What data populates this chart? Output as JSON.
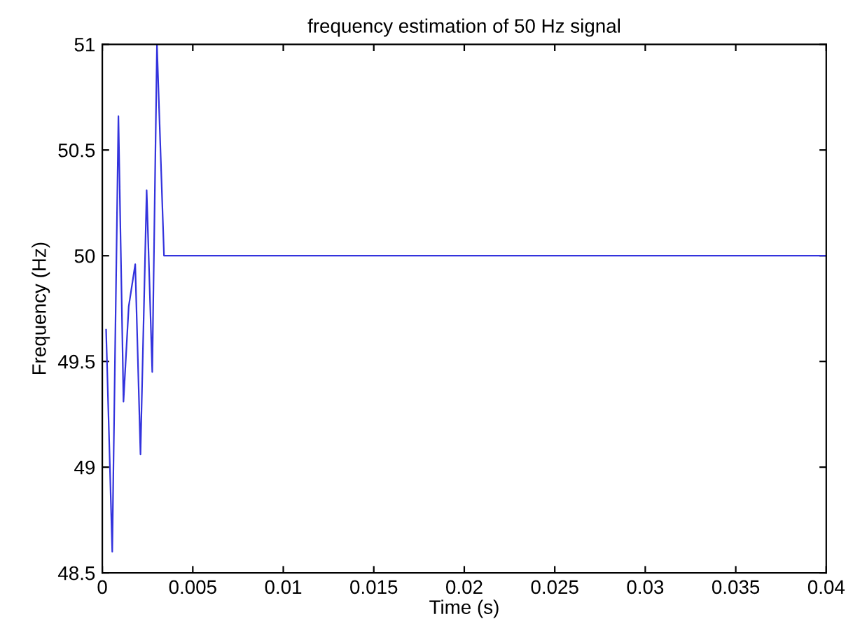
{
  "chart_data": {
    "type": "line",
    "title": "frequency estimation of 50 Hz signal",
    "xlabel": "Time (s)",
    "ylabel": "Frequency (Hz)",
    "series": [
      {
        "color": "#3333dd",
        "x": [
          0.00021,
          0.00055,
          0.00089,
          0.00117,
          0.00146,
          0.00182,
          0.00211,
          0.00245,
          0.00276,
          0.00302,
          0.00341,
          0.04
        ],
        "values": [
          49.65,
          48.6,
          50.66,
          49.31,
          49.76,
          49.96,
          49.06,
          50.31,
          49.45,
          51.0,
          50.0,
          50.0
        ]
      }
    ],
    "xlim": [
      0,
      0.04
    ],
    "xticks": [
      0,
      0.005,
      0.01,
      0.015,
      0.02,
      0.025,
      0.03,
      0.035,
      0.04
    ],
    "ylim": [
      48.5,
      51
    ],
    "yticks": [
      48.5,
      49,
      49.5,
      50,
      50.5,
      51
    ],
    "grid": false
  }
}
